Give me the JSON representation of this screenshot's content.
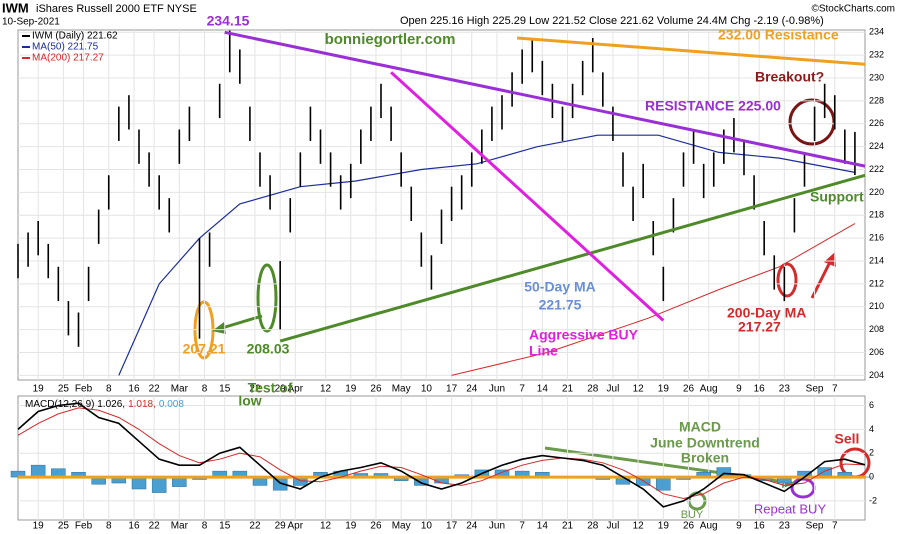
{
  "header": {
    "symbol": "IWM",
    "name": "iShares Russell 2000 ETF NYSE",
    "date": "10-Sep-2021",
    "quote": "Open 225.16  High 225.29  Low 221.52  Close 221.62  Volume 24.4M  Chg -2.19 (-0.98%)",
    "credit": "©StockCharts.com"
  },
  "chart_data": [
    {
      "type": "ohlc",
      "xlim": [
        0,
        168
      ],
      "ylim": [
        203.6,
        234.2
      ],
      "grid": true,
      "yticks": [
        204,
        206,
        208,
        210,
        212,
        214,
        216,
        218,
        220,
        222,
        224,
        226,
        228,
        230,
        232,
        234
      ],
      "xticks": [
        {
          "value": 4,
          "label": "19"
        },
        {
          "value": 9,
          "label": "25"
        },
        {
          "value": 13,
          "label": "Feb"
        },
        {
          "value": 18,
          "label": "8"
        },
        {
          "value": 23,
          "label": "16"
        },
        {
          "value": 27,
          "label": "22"
        },
        {
          "value": 32,
          "label": "Mar"
        },
        {
          "value": 37,
          "label": "8"
        },
        {
          "value": 41,
          "label": "15"
        },
        {
          "value": 47,
          "label": "22"
        },
        {
          "value": 52,
          "label": "29"
        },
        {
          "value": 55,
          "label": "Apr"
        },
        {
          "value": 61,
          "label": "12"
        },
        {
          "value": 66,
          "label": "19"
        },
        {
          "value": 71,
          "label": "26"
        },
        {
          "value": 76,
          "label": "May"
        },
        {
          "value": 81,
          "label": "10"
        },
        {
          "value": 86,
          "label": "17"
        },
        {
          "value": 90,
          "label": "24"
        },
        {
          "value": 95,
          "label": "Jun"
        },
        {
          "value": 100,
          "label": "7"
        },
        {
          "value": 104,
          "label": "14"
        },
        {
          "value": 109,
          "label": "21"
        },
        {
          "value": 114,
          "label": "28"
        },
        {
          "value": 118,
          "label": "Jul"
        },
        {
          "value": 123,
          "label": "12"
        },
        {
          "value": 128,
          "label": "19"
        },
        {
          "value": 133,
          "label": "26"
        },
        {
          "value": 137,
          "label": "Aug"
        },
        {
          "value": 143,
          "label": "9"
        },
        {
          "value": 147,
          "label": "16"
        },
        {
          "value": 152,
          "label": "23"
        },
        {
          "value": 158,
          "label": "Sep"
        },
        {
          "value": 162,
          "label": "7"
        }
      ],
      "series": [
        {
          "name": "IWM (Daily) 221.62",
          "color": "#000000",
          "x": [
            0,
            2,
            4,
            6,
            8,
            10,
            12,
            14,
            16,
            18,
            20,
            22,
            24,
            26,
            28,
            30,
            32,
            34,
            36,
            38,
            40,
            42,
            44,
            46,
            48,
            50,
            52,
            54,
            56,
            58,
            60,
            62,
            64,
            66,
            68,
            70,
            72,
            74,
            76,
            78,
            80,
            82,
            84,
            86,
            88,
            90,
            92,
            94,
            96,
            98,
            100,
            102,
            104,
            106,
            108,
            110,
            112,
            114,
            116,
            118,
            120,
            122,
            124,
            126,
            128,
            130,
            132,
            134,
            136,
            138,
            140,
            142,
            144,
            146,
            148,
            150,
            152,
            154,
            156,
            158,
            160,
            162,
            164,
            166
          ],
          "high": [
            215.5,
            216.5,
            217.5,
            215.5,
            213.5,
            210.5,
            209.5,
            213.5,
            218.5,
            221.5,
            227.5,
            228.5,
            225.5,
            223.5,
            221.5,
            219.5,
            225.5,
            227.5,
            216,
            216.5,
            229.5,
            234.15,
            232.5,
            227.5,
            223.5,
            221.5,
            214,
            219.5,
            223.5,
            227.5,
            225.5,
            223.5,
            221.5,
            222.5,
            225.5,
            227.5,
            229.5,
            227.5,
            223.5,
            220.5,
            216.5,
            214.5,
            218.5,
            220.5,
            221.5,
            223.5,
            225.5,
            227.5,
            228.5,
            230.5,
            232.5,
            233.5,
            231.5,
            229.5,
            227.5,
            229.5,
            231.5,
            233.5,
            230.5,
            227.5,
            223.5,
            220.5,
            222.5,
            217.5,
            213.5,
            219.5,
            223.5,
            225.5,
            222.5,
            223.5,
            225.5,
            226.5,
            224.5,
            221.5,
            217.5,
            214.5,
            213.5,
            219.5,
            223.5,
            227.5,
            229.5,
            228.5,
            225.5,
            225.29
          ],
          "low": [
            212.5,
            213.5,
            214.5,
            212.5,
            210.5,
            207.5,
            206.5,
            210.5,
            215.5,
            218.5,
            224.5,
            225.5,
            222.5,
            220.5,
            218.5,
            216.5,
            222.5,
            224.5,
            207.21,
            213.5,
            226.5,
            230.5,
            229.5,
            224.5,
            220.5,
            218.5,
            208.03,
            216.5,
            220.5,
            224.5,
            222.5,
            220.5,
            218.5,
            219.5,
            222.5,
            224.5,
            226.5,
            224.5,
            220.5,
            217.5,
            213.5,
            211.5,
            215.5,
            217.5,
            218.5,
            220.5,
            222.5,
            224.5,
            225.5,
            227.5,
            229.5,
            230.5,
            228.5,
            226.5,
            224.5,
            226.5,
            228.5,
            230.5,
            227.5,
            224.5,
            220.5,
            217.5,
            219.5,
            214.5,
            210.5,
            216.5,
            220.5,
            222.5,
            219.5,
            220.5,
            222.5,
            223.5,
            221.5,
            218.5,
            214.5,
            211.5,
            210.5,
            216.5,
            220.5,
            224.5,
            226.5,
            225.5,
            222.5,
            221.52
          ]
        }
      ],
      "lines": [
        {
          "name": "MA(50) 221.75",
          "color": "#1c2c9c",
          "x": [
            20,
            28,
            36,
            44,
            56,
            67,
            80,
            91,
            103,
            115,
            127,
            139,
            151,
            166
          ],
          "values": [
            204,
            212,
            216,
            219,
            220.5,
            221,
            222,
            222.5,
            224,
            225,
            225,
            223.5,
            223,
            221.75
          ]
        },
        {
          "name": "MA(200) 217.27",
          "color": "#d42a2a",
          "x": [
            86,
            105,
            125,
            139,
            151,
            166
          ],
          "values": [
            204,
            206,
            209,
            211.5,
            213.5,
            217.27
          ]
        }
      ],
      "trendlines": [
        {
          "color": "#9b2fd6",
          "x": [
            41,
            168
          ],
          "values": [
            234,
            222.3
          ]
        },
        {
          "color": "#4f8a2a",
          "x": [
            52,
            168
          ],
          "values": [
            207,
            221.5
          ]
        },
        {
          "color": "#e020e0",
          "x": [
            74,
            128
          ],
          "values": [
            230.5,
            208.8
          ]
        },
        {
          "color": "#f0a020",
          "x": [
            99,
            168
          ],
          "values": [
            233.5,
            231.2
          ]
        }
      ],
      "annotations": [
        {
          "text": "234.15",
          "color": "#9b2fd6"
        },
        {
          "text": "bonniegortler.com",
          "color": "#4f8a2a"
        },
        {
          "text": "232.00 Resistance",
          "color": "#f0a020"
        },
        {
          "text": "Breakout?",
          "color": "#8b1a1a"
        },
        {
          "text": "RESISTANCE 225.00",
          "color": "#9b2fd6"
        },
        {
          "text": "Support",
          "color": "#4f8a2a"
        },
        {
          "text": "50-Day MA",
          "color": "#6a8fd8"
        },
        {
          "text": "221.75",
          "color": "#6a8fd8"
        },
        {
          "text": "Aggressive BUY",
          "color": "#e020e0"
        },
        {
          "text": "Line",
          "color": "#e020e0"
        },
        {
          "text": "200-Day MA",
          "color": "#d42a2a"
        },
        {
          "text": "217.27",
          "color": "#d42a2a"
        },
        {
          "text": "207.21",
          "color": "#f0a020"
        },
        {
          "text": "208.03",
          "color": "#4f8a2a"
        },
        {
          "text": "Test of",
          "color": "#4f8a2a"
        },
        {
          "text": "low",
          "color": "#4f8a2a"
        }
      ]
    },
    {
      "type": "macd",
      "title": "MACD(12,26,9) 1.026,",
      "signal_label": "1.018,",
      "hist_label": "0.008",
      "xlim": [
        0,
        168
      ],
      "ylim": [
        -3.6,
        6.8
      ],
      "grid": true,
      "baseline": 0,
      "baseline_color": "#f0a020",
      "yticks": [
        -2,
        0,
        2,
        4,
        6
      ],
      "x": [
        0,
        4,
        8,
        12,
        16,
        20,
        24,
        28,
        32,
        36,
        40,
        44,
        48,
        52,
        56,
        60,
        64,
        68,
        72,
        76,
        80,
        84,
        88,
        92,
        96,
        100,
        104,
        108,
        112,
        116,
        120,
        124,
        128,
        132,
        136,
        140,
        144,
        148,
        152,
        156,
        160,
        164,
        168
      ],
      "series": [
        {
          "name": "MACD",
          "color": "#000000",
          "values": [
            4,
            5.5,
            6,
            6.2,
            5,
            4.5,
            3,
            1.5,
            1,
            1,
            2,
            2.5,
            1,
            -0.5,
            -1,
            0,
            0.5,
            0.8,
            1.2,
            0.5,
            -0.5,
            -1,
            -0.5,
            0.3,
            1,
            1.5,
            1.8,
            1.6,
            1.4,
            1,
            0,
            -1,
            -2.5,
            -2,
            -1,
            0.3,
            0.2,
            -0.5,
            -1.2,
            0,
            1.3,
            1.5,
            1.026
          ]
        },
        {
          "name": "Signal",
          "color": "#d42a2a",
          "values": [
            3.5,
            4.5,
            5.3,
            5.8,
            5.6,
            5,
            4,
            2.8,
            1.8,
            1.2,
            1.5,
            2,
            1.7,
            0.6,
            -0.3,
            -0.4,
            0,
            0.5,
            0.9,
            0.8,
            0.2,
            -0.5,
            -0.7,
            -0.3,
            0.4,
            1,
            1.4,
            1.6,
            1.5,
            1.2,
            0.6,
            -0.3,
            -1.4,
            -1.8,
            -1.4,
            -0.5,
            0,
            -0.2,
            -0.7,
            -0.5,
            0.5,
            1.1,
            1.018
          ]
        },
        {
          "name": "Histogram",
          "color": "#4a9fd0",
          "values": [
            0.5,
            1,
            0.7,
            0.4,
            -0.6,
            -0.5,
            -1,
            -1.3,
            -0.8,
            -0.2,
            0.5,
            0.5,
            -0.7,
            -1.1,
            -0.7,
            0.4,
            0.5,
            0.3,
            0.3,
            -0.3,
            -0.7,
            -0.5,
            0.2,
            0.6,
            0.6,
            0.5,
            0.4,
            0,
            -0.1,
            -0.2,
            -0.6,
            -0.7,
            -1.1,
            -0.2,
            0.4,
            0.8,
            0.2,
            -0.3,
            -0.5,
            0.5,
            0.8,
            0.4,
            0.008
          ]
        }
      ],
      "annotations": [
        {
          "text": "MACD",
          "color": "#6a9a4a"
        },
        {
          "text": "June Downtrend",
          "color": "#6a9a4a"
        },
        {
          "text": "Broken",
          "color": "#6a9a4a"
        },
        {
          "text": "BUY",
          "color": "#6a9a4a"
        },
        {
          "text": "Repeat BUY",
          "color": "#9b2fd6"
        },
        {
          "text": "Sell",
          "color": "#d42a2a"
        }
      ]
    }
  ]
}
